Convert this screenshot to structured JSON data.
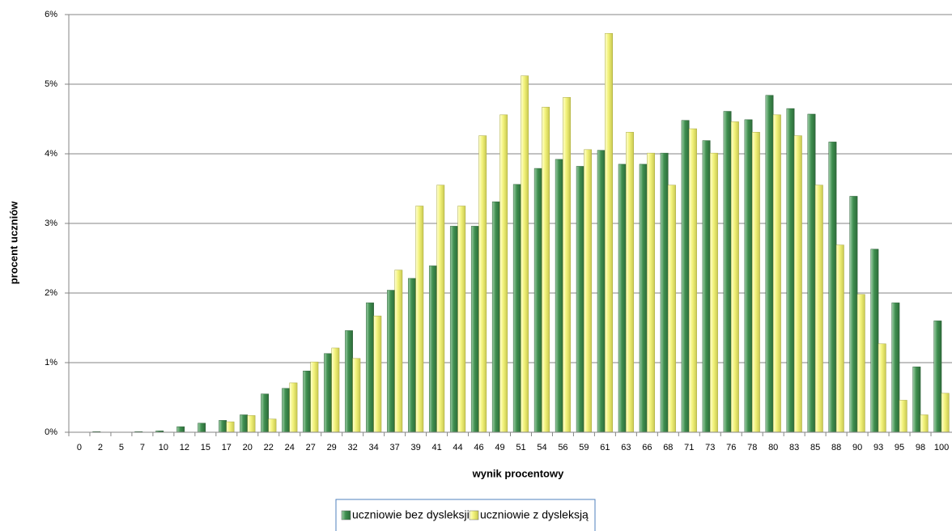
{
  "chart_data": {
    "type": "bar",
    "x_label": "wynik procentowy",
    "y_label": "procent  uczniów",
    "categories": [
      0,
      2,
      5,
      7,
      10,
      12,
      15,
      17,
      20,
      22,
      24,
      27,
      29,
      32,
      34,
      37,
      39,
      41,
      44,
      46,
      49,
      51,
      54,
      56,
      59,
      61,
      63,
      66,
      68,
      71,
      73,
      76,
      78,
      80,
      83,
      85,
      88,
      90,
      93,
      95,
      98,
      100
    ],
    "series": [
      {
        "name": "uczniowie bez dysleksji",
        "color": "#3f8f4f",
        "values": [
          0,
          0.01,
          0,
          0.01,
          0.02,
          0.08,
          0.13,
          0.17,
          0.25,
          0.55,
          0.63,
          0.88,
          1.13,
          1.46,
          1.86,
          2.04,
          2.21,
          2.39,
          2.96,
          2.96,
          3.31,
          3.56,
          3.79,
          3.92,
          3.82,
          4.05,
          3.85,
          3.85,
          4.01,
          4.48,
          4.19,
          4.61,
          4.49,
          4.84,
          4.65,
          4.57,
          4.17,
          3.39,
          2.63,
          1.86,
          0.94,
          1.6
        ]
      },
      {
        "name": "uczniowie z dysleksją",
        "color": "#f2f27a",
        "values": [
          0,
          0,
          0,
          0,
          0,
          0,
          0,
          0.15,
          0.24,
          0.19,
          0.71,
          1.01,
          1.21,
          1.06,
          1.67,
          2.33,
          3.25,
          3.55,
          3.25,
          4.26,
          4.56,
          5.12,
          4.67,
          4.81,
          4.06,
          5.73,
          4.31,
          4.01,
          3.55,
          4.36,
          4.01,
          4.46,
          4.31,
          4.56,
          4.26,
          3.55,
          2.69,
          1.98,
          1.27,
          0.46,
          0.25,
          0.56
        ]
      }
    ],
    "ylim": [
      0,
      6
    ],
    "yticks": [
      {
        "value": 0,
        "label": "0%"
      },
      {
        "value": 1,
        "label": "1%"
      },
      {
        "value": 2,
        "label": "2%"
      },
      {
        "value": 3,
        "label": "3%"
      },
      {
        "value": 4,
        "label": "4%"
      },
      {
        "value": 5,
        "label": "5%"
      },
      {
        "value": 6,
        "label": "6%"
      }
    ],
    "grid": true,
    "legend": "bottom"
  }
}
